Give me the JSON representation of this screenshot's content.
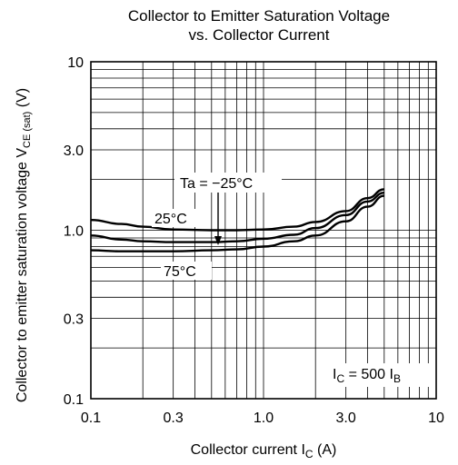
{
  "chart_data": {
    "type": "line",
    "title": "Collector to Emitter Saturation Voltage",
    "subtitle": "vs. Collector Current",
    "xlabel": "Collector current",
    "xlabel_symbol": "I",
    "xlabel_symbol_sub": "C",
    "xlabel_unit": "(A)",
    "ylabel": "Collector to emitter saturation voltage",
    "ylabel_symbol": "V",
    "ylabel_symbol_sub": "CE (sat)",
    "ylabel_unit": "(V)",
    "x_scale": "log",
    "y_scale": "log",
    "xlim": [
      0.1,
      10
    ],
    "ylim": [
      0.1,
      10
    ],
    "x_ticks": [
      "0.1",
      "0.3",
      "1.0",
      "3.0",
      "10"
    ],
    "y_ticks": [
      "10",
      "3.0",
      "1.0",
      "0.3",
      "0.1"
    ],
    "grid": true,
    "condition": {
      "prefix": "I",
      "prefix_sub": "C",
      "middle": " = 500 I",
      "suffix_sub": "B"
    },
    "annotations": {
      "ta_label": "Ta = −25°C",
      "label_25": "25°C",
      "label_75": "75°C"
    },
    "series": [
      {
        "name": "Ta = −25°C",
        "x": [
          0.1,
          0.15,
          0.2,
          0.3,
          0.5,
          0.7,
          1.0,
          1.5,
          2.0,
          3.0,
          4.0,
          5.0
        ],
        "y": [
          1.15,
          1.09,
          1.05,
          1.01,
          1.0,
          1.0,
          1.01,
          1.05,
          1.12,
          1.3,
          1.55,
          1.75
        ]
      },
      {
        "name": "25°C",
        "x": [
          0.1,
          0.15,
          0.2,
          0.3,
          0.5,
          0.7,
          1.0,
          1.5,
          2.0,
          3.0,
          4.0,
          5.0
        ],
        "y": [
          0.93,
          0.88,
          0.86,
          0.85,
          0.85,
          0.86,
          0.89,
          0.94,
          1.03,
          1.23,
          1.48,
          1.67
        ]
      },
      {
        "name": "75°C",
        "x": [
          0.1,
          0.15,
          0.2,
          0.3,
          0.5,
          0.7,
          1.0,
          1.5,
          2.0,
          3.0,
          4.0,
          5.0
        ],
        "y": [
          0.76,
          0.75,
          0.75,
          0.75,
          0.76,
          0.77,
          0.8,
          0.86,
          0.93,
          1.13,
          1.38,
          1.6
        ]
      }
    ],
    "line_color": "#000000"
  }
}
